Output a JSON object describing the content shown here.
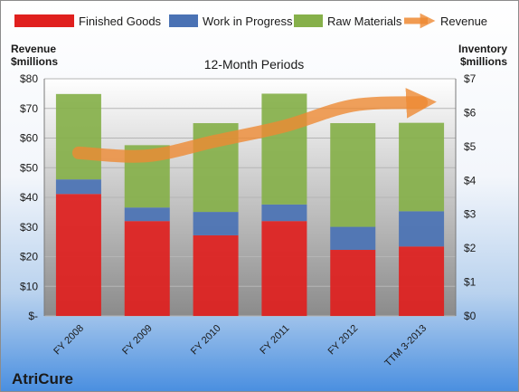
{
  "company": "AtriCure",
  "chart_data": {
    "type": "bar",
    "stacked": true,
    "subtitle": "12-Month Periods",
    "y_left_title": [
      "Revenue",
      "$millions"
    ],
    "y_right_title": [
      "Inventory",
      "$millions"
    ],
    "y_left_ticks": [
      "$-",
      "$10",
      "$20",
      "$30",
      "$40",
      "$50",
      "$60",
      "$70",
      "$80"
    ],
    "y_right_ticks": [
      "$0",
      "$1",
      "$2",
      "$3",
      "$4",
      "$5",
      "$6",
      "$7"
    ],
    "ylim_left": [
      0,
      80
    ],
    "ylim_right": [
      0,
      7
    ],
    "categories": [
      "FY 2008",
      "FY 2009",
      "FY 2010",
      "FY 2011",
      "FY 2012",
      "TTM 3-2013"
    ],
    "series": [
      {
        "name": "Finished Goods",
        "axis": "right",
        "color": "#e0201e",
        "values": [
          3.6,
          2.8,
          2.38,
          2.8,
          1.95,
          2.05
        ]
      },
      {
        "name": "Work in Progress",
        "axis": "right",
        "color": "#4a72b4",
        "values": [
          0.43,
          0.4,
          0.69,
          0.49,
          0.68,
          1.04
        ]
      },
      {
        "name": "Raw Materials",
        "axis": "right",
        "color": "#86b04a",
        "values": [
          2.52,
          1.84,
          2.62,
          3.27,
          3.06,
          2.61
        ]
      },
      {
        "name": "Revenue",
        "axis": "left",
        "type": "line",
        "color": "#ee8a33",
        "values": [
          55,
          54,
          59,
          64,
          71,
          72
        ]
      }
    ],
    "grid": true,
    "legend": "top"
  }
}
